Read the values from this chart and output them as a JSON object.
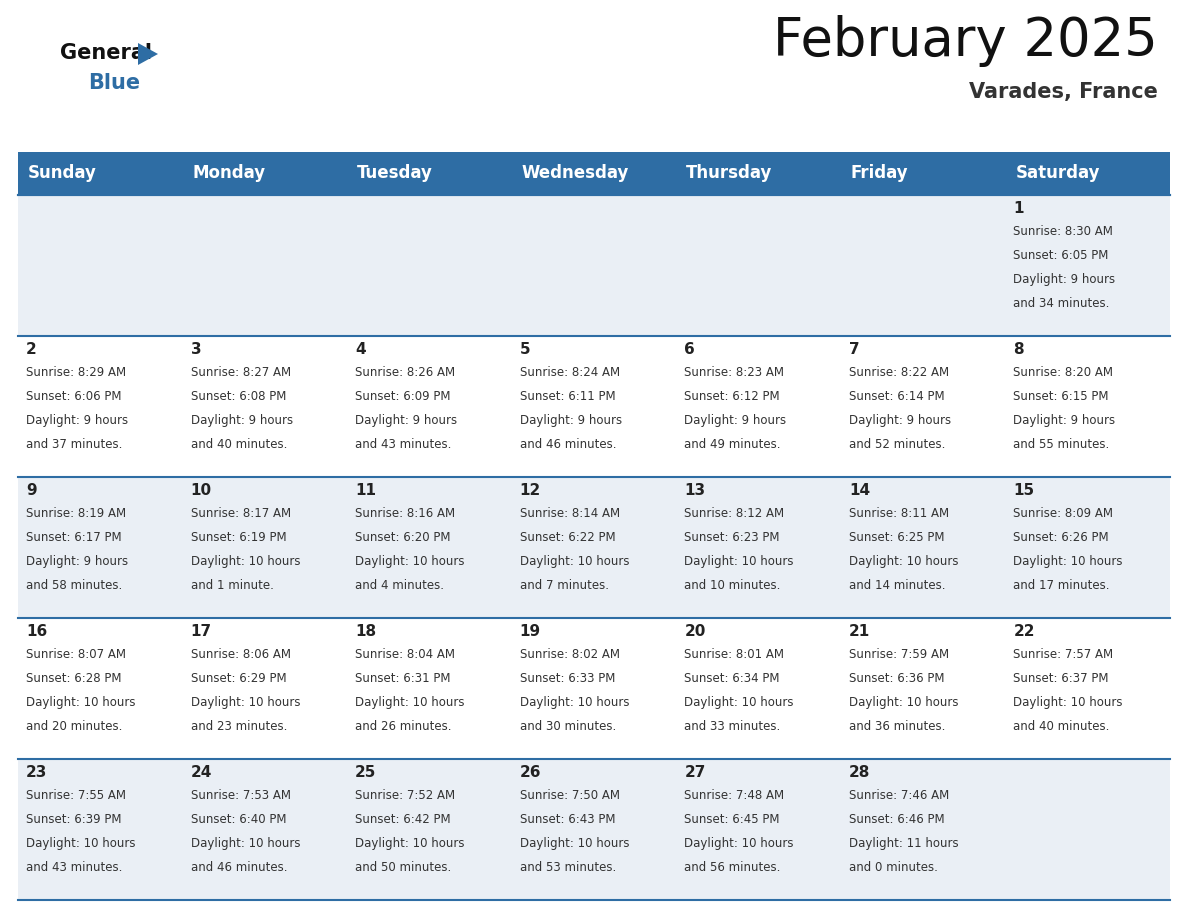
{
  "title": "February 2025",
  "subtitle": "Varades, France",
  "header_bg": "#2E6DA4",
  "header_text_color": "#FFFFFF",
  "day_names": [
    "Sunday",
    "Monday",
    "Tuesday",
    "Wednesday",
    "Thursday",
    "Friday",
    "Saturday"
  ],
  "bg_color": "#FFFFFF",
  "row_alt_color": "#EAEFF5",
  "cell_border_color": "#2E6DA4",
  "cell_text_color": "#333333",
  "day_num_color": "#222222",
  "logo_general_color": "#111111",
  "logo_blue_color": "#2E6DA4",
  "title_fontsize": 38,
  "subtitle_fontsize": 15,
  "header_fontsize": 12,
  "day_num_fontsize": 11,
  "cell_fontsize": 8.5,
  "days": [
    {
      "day": 1,
      "col": 6,
      "row": 0,
      "sunrise": "8:30 AM",
      "sunset": "6:05 PM",
      "daylight": "9 hours\nand 34 minutes."
    },
    {
      "day": 2,
      "col": 0,
      "row": 1,
      "sunrise": "8:29 AM",
      "sunset": "6:06 PM",
      "daylight": "9 hours\nand 37 minutes."
    },
    {
      "day": 3,
      "col": 1,
      "row": 1,
      "sunrise": "8:27 AM",
      "sunset": "6:08 PM",
      "daylight": "9 hours\nand 40 minutes."
    },
    {
      "day": 4,
      "col": 2,
      "row": 1,
      "sunrise": "8:26 AM",
      "sunset": "6:09 PM",
      "daylight": "9 hours\nand 43 minutes."
    },
    {
      "day": 5,
      "col": 3,
      "row": 1,
      "sunrise": "8:24 AM",
      "sunset": "6:11 PM",
      "daylight": "9 hours\nand 46 minutes."
    },
    {
      "day": 6,
      "col": 4,
      "row": 1,
      "sunrise": "8:23 AM",
      "sunset": "6:12 PM",
      "daylight": "9 hours\nand 49 minutes."
    },
    {
      "day": 7,
      "col": 5,
      "row": 1,
      "sunrise": "8:22 AM",
      "sunset": "6:14 PM",
      "daylight": "9 hours\nand 52 minutes."
    },
    {
      "day": 8,
      "col": 6,
      "row": 1,
      "sunrise": "8:20 AM",
      "sunset": "6:15 PM",
      "daylight": "9 hours\nand 55 minutes."
    },
    {
      "day": 9,
      "col": 0,
      "row": 2,
      "sunrise": "8:19 AM",
      "sunset": "6:17 PM",
      "daylight": "9 hours\nand 58 minutes."
    },
    {
      "day": 10,
      "col": 1,
      "row": 2,
      "sunrise": "8:17 AM",
      "sunset": "6:19 PM",
      "daylight": "10 hours\nand 1 minute."
    },
    {
      "day": 11,
      "col": 2,
      "row": 2,
      "sunrise": "8:16 AM",
      "sunset": "6:20 PM",
      "daylight": "10 hours\nand 4 minutes."
    },
    {
      "day": 12,
      "col": 3,
      "row": 2,
      "sunrise": "8:14 AM",
      "sunset": "6:22 PM",
      "daylight": "10 hours\nand 7 minutes."
    },
    {
      "day": 13,
      "col": 4,
      "row": 2,
      "sunrise": "8:12 AM",
      "sunset": "6:23 PM",
      "daylight": "10 hours\nand 10 minutes."
    },
    {
      "day": 14,
      "col": 5,
      "row": 2,
      "sunrise": "8:11 AM",
      "sunset": "6:25 PM",
      "daylight": "10 hours\nand 14 minutes."
    },
    {
      "day": 15,
      "col": 6,
      "row": 2,
      "sunrise": "8:09 AM",
      "sunset": "6:26 PM",
      "daylight": "10 hours\nand 17 minutes."
    },
    {
      "day": 16,
      "col": 0,
      "row": 3,
      "sunrise": "8:07 AM",
      "sunset": "6:28 PM",
      "daylight": "10 hours\nand 20 minutes."
    },
    {
      "day": 17,
      "col": 1,
      "row": 3,
      "sunrise": "8:06 AM",
      "sunset": "6:29 PM",
      "daylight": "10 hours\nand 23 minutes."
    },
    {
      "day": 18,
      "col": 2,
      "row": 3,
      "sunrise": "8:04 AM",
      "sunset": "6:31 PM",
      "daylight": "10 hours\nand 26 minutes."
    },
    {
      "day": 19,
      "col": 3,
      "row": 3,
      "sunrise": "8:02 AM",
      "sunset": "6:33 PM",
      "daylight": "10 hours\nand 30 minutes."
    },
    {
      "day": 20,
      "col": 4,
      "row": 3,
      "sunrise": "8:01 AM",
      "sunset": "6:34 PM",
      "daylight": "10 hours\nand 33 minutes."
    },
    {
      "day": 21,
      "col": 5,
      "row": 3,
      "sunrise": "7:59 AM",
      "sunset": "6:36 PM",
      "daylight": "10 hours\nand 36 minutes."
    },
    {
      "day": 22,
      "col": 6,
      "row": 3,
      "sunrise": "7:57 AM",
      "sunset": "6:37 PM",
      "daylight": "10 hours\nand 40 minutes."
    },
    {
      "day": 23,
      "col": 0,
      "row": 4,
      "sunrise": "7:55 AM",
      "sunset": "6:39 PM",
      "daylight": "10 hours\nand 43 minutes."
    },
    {
      "day": 24,
      "col": 1,
      "row": 4,
      "sunrise": "7:53 AM",
      "sunset": "6:40 PM",
      "daylight": "10 hours\nand 46 minutes."
    },
    {
      "day": 25,
      "col": 2,
      "row": 4,
      "sunrise": "7:52 AM",
      "sunset": "6:42 PM",
      "daylight": "10 hours\nand 50 minutes."
    },
    {
      "day": 26,
      "col": 3,
      "row": 4,
      "sunrise": "7:50 AM",
      "sunset": "6:43 PM",
      "daylight": "10 hours\nand 53 minutes."
    },
    {
      "day": 27,
      "col": 4,
      "row": 4,
      "sunrise": "7:48 AM",
      "sunset": "6:45 PM",
      "daylight": "10 hours\nand 56 minutes."
    },
    {
      "day": 28,
      "col": 5,
      "row": 4,
      "sunrise": "7:46 AM",
      "sunset": "6:46 PM",
      "daylight": "11 hours\nand 0 minutes."
    }
  ]
}
